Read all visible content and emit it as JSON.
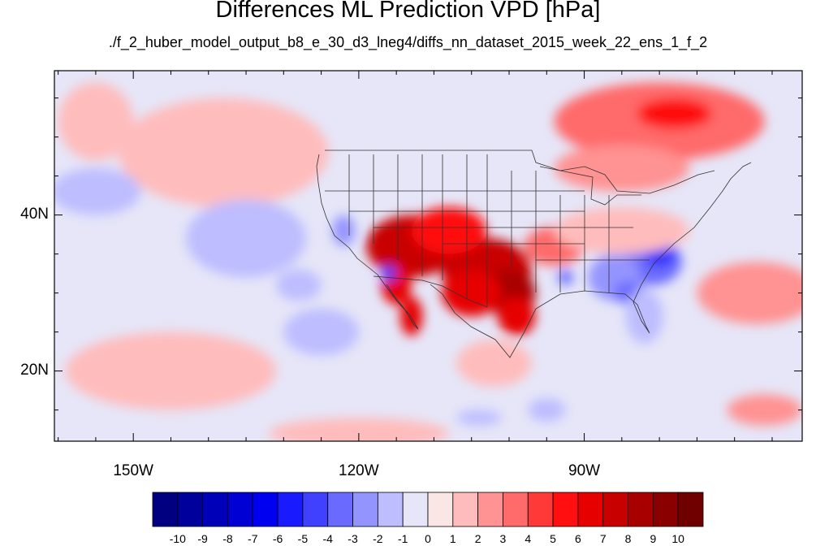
{
  "chart_data": {
    "type": "heatmap",
    "title": "Differences ML Prediction VPD [hPa]",
    "subtitle": "./f_2_huber_model_output_b8_e_30_d3_lneg4/diffs_nn_dataset_2015_week_22_ens_1_f_2",
    "x_range": [
      -160.5,
      -61
    ],
    "y_range": [
      11,
      58.5
    ],
    "x_ticks": [
      {
        "value": -150,
        "label": "150W"
      },
      {
        "value": -120,
        "label": "120W"
      },
      {
        "value": -90,
        "label": "90W"
      }
    ],
    "y_ticks": [
      {
        "value": 40,
        "label": "40N"
      },
      {
        "value": 20,
        "label": "20N"
      }
    ],
    "colorbar": {
      "levels": [
        -10,
        -9,
        -8,
        -7,
        -6,
        -5,
        -4,
        -3,
        -2,
        -1,
        0,
        1,
        2,
        3,
        4,
        5,
        6,
        7,
        8,
        9,
        10
      ],
      "labels": [
        "-10",
        "-9",
        "-8",
        "-7",
        "-6",
        "-5",
        "-4",
        "-3",
        "-2",
        "-1",
        "0",
        "1",
        "2",
        "3",
        "4",
        "5",
        "6",
        "7",
        "8",
        "9",
        "10"
      ],
      "colors": [
        "#000080",
        "#00009c",
        "#0000b8",
        "#0000d4",
        "#0000f0",
        "#1a1aff",
        "#4040ff",
        "#6a6aff",
        "#9494ff",
        "#bdbdff",
        "#e6e6f8",
        "#fbe6e6",
        "#ffbcbc",
        "#ff9292",
        "#ff6a6a",
        "#ff3838",
        "#ff0f0f",
        "#e60000",
        "#c80000",
        "#a80000",
        "#8a0000",
        "#700000"
      ]
    },
    "regions": [
      {
        "lon": -113,
        "lat": 36,
        "rx": 6,
        "ry": 4,
        "value": 7
      },
      {
        "lon": -103,
        "lat": 33,
        "rx": 6,
        "ry": 4,
        "value": 7.5
      },
      {
        "lon": -100,
        "lat": 30,
        "rx": 3.5,
        "ry": 3,
        "value": 8
      },
      {
        "lon": -108,
        "lat": 38,
        "rx": 5,
        "ry": 3,
        "value": 5
      },
      {
        "lon": -105,
        "lat": 30,
        "rx": 4,
        "ry": 3,
        "value": 6
      },
      {
        "lon": -115,
        "lat": 31,
        "rx": 2,
        "ry": 2.5,
        "value": 6
      },
      {
        "lon": -99,
        "lat": 27,
        "rx": 2.5,
        "ry": 2.5,
        "value": 6.5
      },
      {
        "lon": -94,
        "lat": 36,
        "rx": 4,
        "ry": 2.5,
        "value": 3
      },
      {
        "lon": -113,
        "lat": 27,
        "rx": 1.5,
        "ry": 2.5,
        "value": 6
      },
      {
        "lon": -116,
        "lat": 32.5,
        "rx": 1,
        "ry": 1,
        "value": -5
      },
      {
        "lon": -122,
        "lat": 38,
        "rx": 1.5,
        "ry": 2,
        "value": -3
      },
      {
        "lon": -81,
        "lat": 34,
        "rx": 4,
        "ry": 3,
        "value": -4
      },
      {
        "lon": -86,
        "lat": 32,
        "rx": 3.5,
        "ry": 3,
        "value": -3
      },
      {
        "lon": -80,
        "lat": 35,
        "rx": 2,
        "ry": 1.5,
        "value": -6
      },
      {
        "lon": -84,
        "lat": 30,
        "rx": 2,
        "ry": 1.5,
        "value": -4
      },
      {
        "lon": -92.5,
        "lat": 32,
        "rx": 1,
        "ry": 1,
        "value": -4
      },
      {
        "lon": -82,
        "lat": 27,
        "rx": 2.5,
        "ry": 3.5,
        "value": -2
      },
      {
        "lon": -80,
        "lat": 52,
        "rx": 14,
        "ry": 5,
        "value": 3
      },
      {
        "lon": -78,
        "lat": 53,
        "rx": 5,
        "ry": 2,
        "value": 5
      },
      {
        "lon": -85,
        "lat": 46,
        "rx": 9,
        "ry": 3,
        "value": 2
      },
      {
        "lon": -67,
        "lat": 30,
        "rx": 8,
        "ry": 4,
        "value": 2
      },
      {
        "lon": -66,
        "lat": 15,
        "rx": 5,
        "ry": 2,
        "value": 2
      },
      {
        "lon": -145,
        "lat": 20,
        "rx": 14,
        "ry": 5,
        "value": 1
      },
      {
        "lon": -138,
        "lat": 48,
        "rx": 14,
        "ry": 7,
        "value": 1
      },
      {
        "lon": -155,
        "lat": 52,
        "rx": 5,
        "ry": 5,
        "value": 1
      },
      {
        "lon": -155,
        "lat": 43,
        "rx": 6,
        "ry": 3,
        "value": -2
      },
      {
        "lon": -135,
        "lat": 37,
        "rx": 8,
        "ry": 5,
        "value": -2
      },
      {
        "lon": -125,
        "lat": 25,
        "rx": 5,
        "ry": 3,
        "value": -2
      },
      {
        "lon": -128,
        "lat": 31,
        "rx": 3,
        "ry": 2,
        "value": -2
      },
      {
        "lon": -85,
        "lat": 38,
        "rx": 9,
        "ry": 3,
        "value": 1
      },
      {
        "lon": -102,
        "lat": 21,
        "rx": 5,
        "ry": 3,
        "value": 1
      },
      {
        "lon": -95,
        "lat": 15,
        "rx": 2.5,
        "ry": 1.5,
        "value": -2
      },
      {
        "lon": -120,
        "lat": 12,
        "rx": 12,
        "ry": 2,
        "value": 1
      },
      {
        "lon": -104,
        "lat": 14,
        "rx": 3,
        "ry": 1,
        "value": -2
      }
    ]
  }
}
